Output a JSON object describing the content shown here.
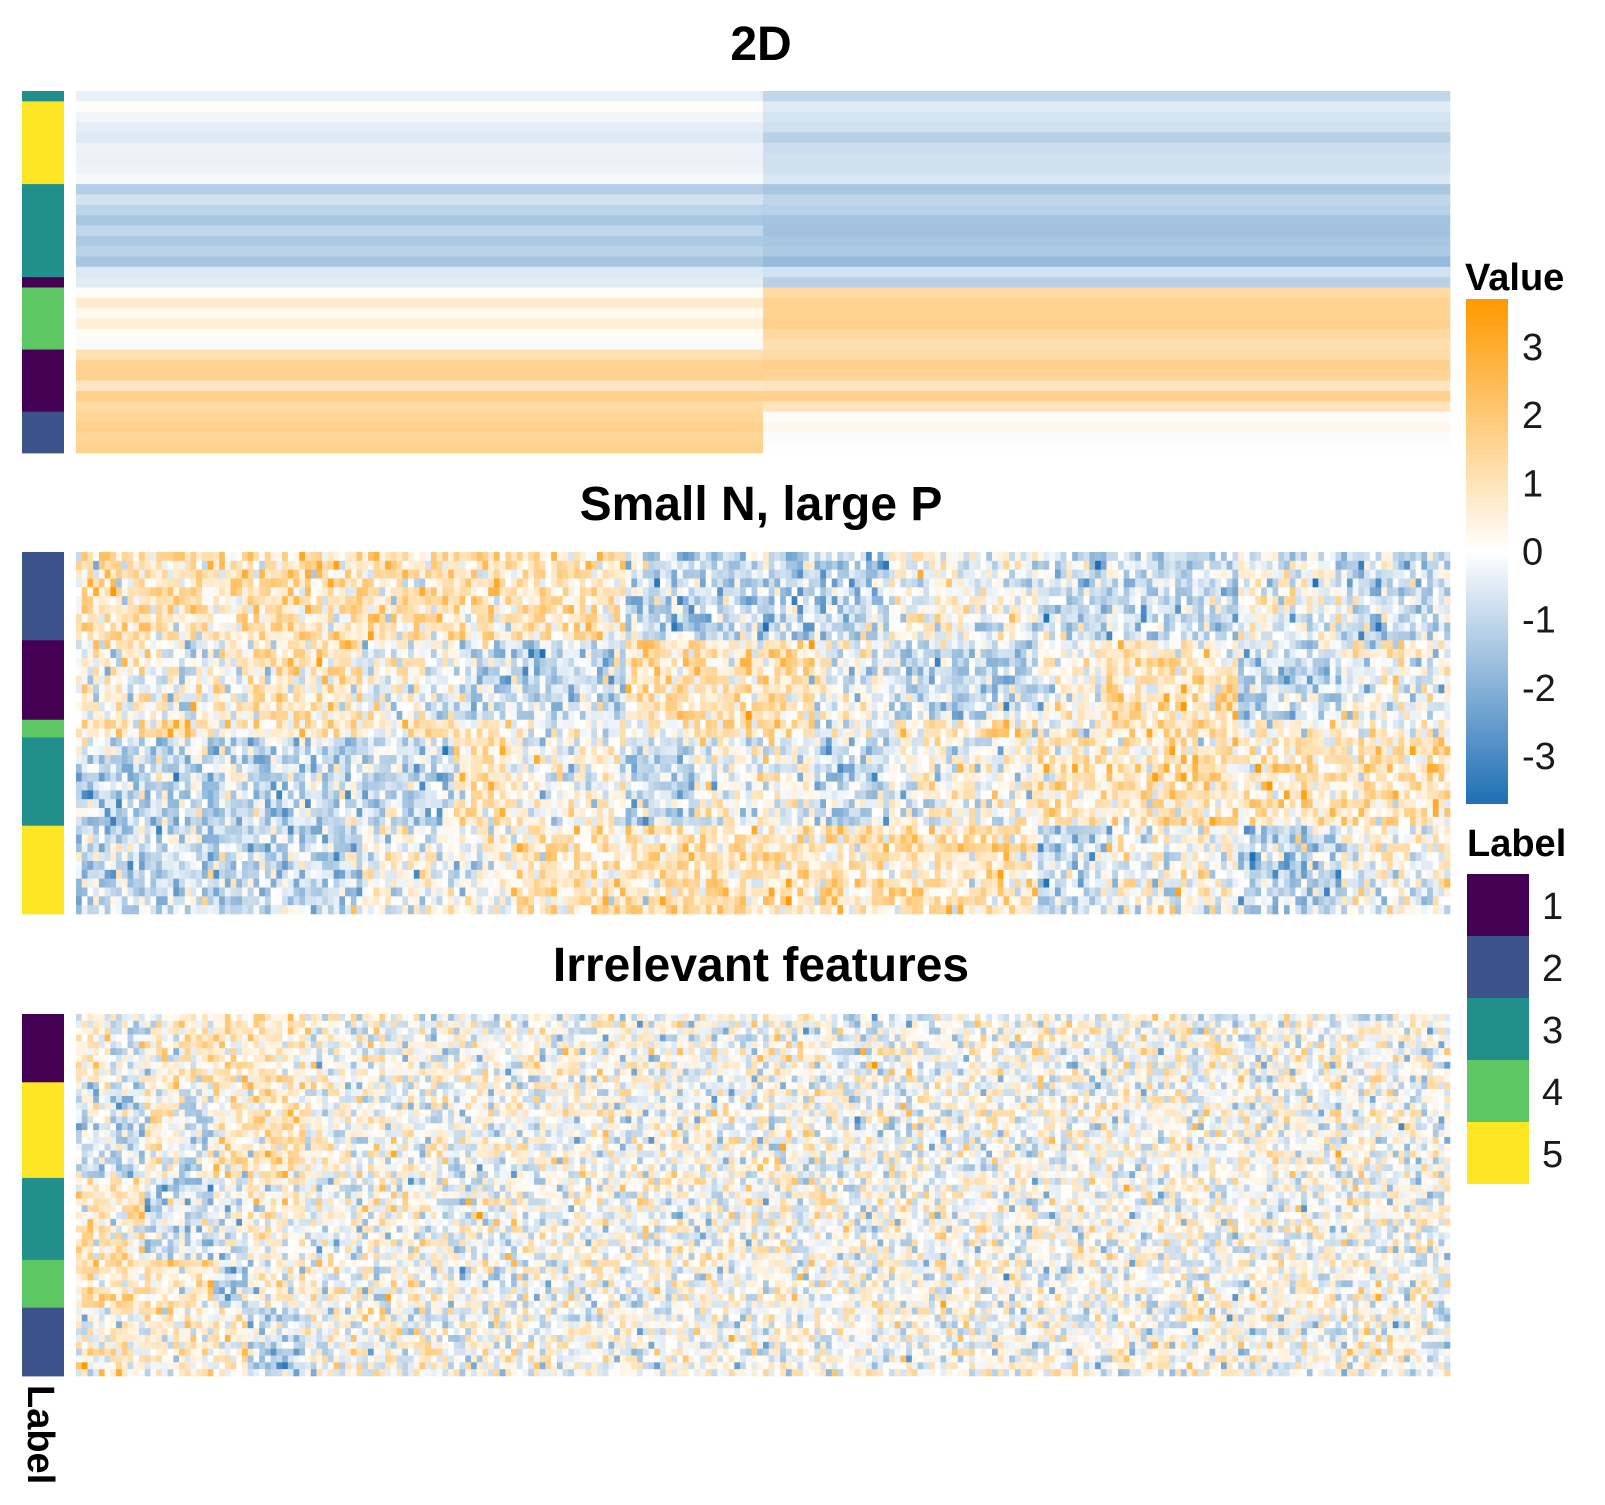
{
  "colors": {
    "value_low": "#1F6FB5",
    "value_mid": "#FFFFFF",
    "value_high": "#FF9900",
    "labels": {
      "1": "#440154",
      "2": "#3B528B",
      "3": "#21908C",
      "4": "#5DC863",
      "5": "#FDE725"
    }
  },
  "chart_data": [
    {
      "type": "heatmap",
      "title": "2D",
      "n_columns": 2,
      "row_groups": [
        {
          "label": 3,
          "rows": 1
        },
        {
          "label": 5,
          "rows": 8
        },
        {
          "label": 3,
          "rows": 9
        },
        {
          "label": 1,
          "rows": 1
        },
        {
          "label": 4,
          "rows": 6
        },
        {
          "label": 1,
          "rows": 6
        },
        {
          "label": 2,
          "rows": 4
        }
      ],
      "column_means": [
        [
          -0.4,
          -0.9
        ],
        [
          -0.3,
          -0.8
        ],
        [
          -1.1,
          -1.3
        ],
        [
          -0.8,
          -1.3
        ],
        [
          0.4,
          1.6
        ],
        [
          1.3,
          1.2
        ],
        [
          1.7,
          0.2
        ]
      ],
      "noise": 0.2
    },
    {
      "type": "heatmap",
      "title": "Small N, large P",
      "n_columns": 240,
      "row_groups": [
        {
          "label": 2,
          "rows": 10
        },
        {
          "label": 1,
          "rows": 9
        },
        {
          "label": 4,
          "rows": 2
        },
        {
          "label": 3,
          "rows": 10
        },
        {
          "label": 5,
          "rows": 10
        }
      ],
      "column_blocks": [
        {
          "columns": 30,
          "means": [
            1,
            0,
            1,
            -1,
            -1
          ]
        },
        {
          "columns": 20,
          "means": [
            1,
            1,
            1,
            -1,
            -1
          ]
        },
        {
          "columns": 16,
          "means": [
            1,
            0,
            1,
            -1,
            0
          ]
        },
        {
          "columns": 10,
          "means": [
            1,
            -1,
            1,
            1,
            0
          ]
        },
        {
          "columns": 20,
          "means": [
            1,
            -1,
            0,
            0,
            1
          ]
        },
        {
          "columns": 12,
          "means": [
            -1,
            1,
            0,
            -1,
            1
          ]
        },
        {
          "columns": 21,
          "means": [
            -1,
            1,
            1,
            0,
            1
          ]
        },
        {
          "columns": 13,
          "means": [
            -1,
            0,
            0,
            -1,
            1
          ]
        },
        {
          "columns": 26,
          "means": [
            0,
            -1,
            1,
            0,
            1
          ]
        },
        {
          "columns": 12,
          "means": [
            -1,
            0,
            0,
            1,
            -1
          ]
        },
        {
          "columns": 23,
          "means": [
            -1,
            1,
            1,
            1,
            0
          ]
        },
        {
          "columns": 18,
          "means": [
            0,
            -1,
            1,
            1,
            -1
          ]
        },
        {
          "columns": 19,
          "means": [
            -1,
            0,
            0,
            1,
            0
          ]
        }
      ],
      "noise": 0.9
    },
    {
      "type": "heatmap",
      "title": "Irrelevant features",
      "n_columns": 240,
      "n_relevant_columns": 40,
      "row_groups": [
        {
          "label": 1,
          "rows": 10
        },
        {
          "label": 5,
          "rows": 14
        },
        {
          "label": 3,
          "rows": 12
        },
        {
          "label": 4,
          "rows": 7
        },
        {
          "label": 2,
          "rows": 10
        }
      ],
      "relevant_blocks": [
        {
          "columns": 6,
          "means": [
            0.4,
            -0.5,
            0.8,
            1.0,
            0.4
          ]
        },
        {
          "columns": 6,
          "means": [
            -0.5,
            -0.9,
            0.7,
            0.9,
            0.6
          ]
        },
        {
          "columns": 6,
          "means": [
            0.5,
            0.6,
            -1.0,
            0.9,
            0.5
          ]
        },
        {
          "columns": 6,
          "means": [
            0.7,
            -0.7,
            -0.8,
            0.7,
            0.3
          ]
        },
        {
          "columns": 6,
          "means": [
            0.8,
            0.8,
            -0.6,
            -0.9,
            0.5
          ]
        },
        {
          "columns": 10,
          "means": [
            0.7,
            0.9,
            0.4,
            0.2,
            -1.1
          ]
        }
      ],
      "noise": 0.9
    }
  ],
  "legend_value": {
    "title": "Value",
    "ticks": [
      "3",
      "2",
      "1",
      "0",
      "-1",
      "-2",
      "-3"
    ],
    "range": [
      -3.7,
      3.7
    ]
  },
  "legend_label": {
    "title": "Label",
    "entries": [
      "1",
      "2",
      "3",
      "4",
      "5"
    ]
  },
  "annotation_axis_label": "Label"
}
